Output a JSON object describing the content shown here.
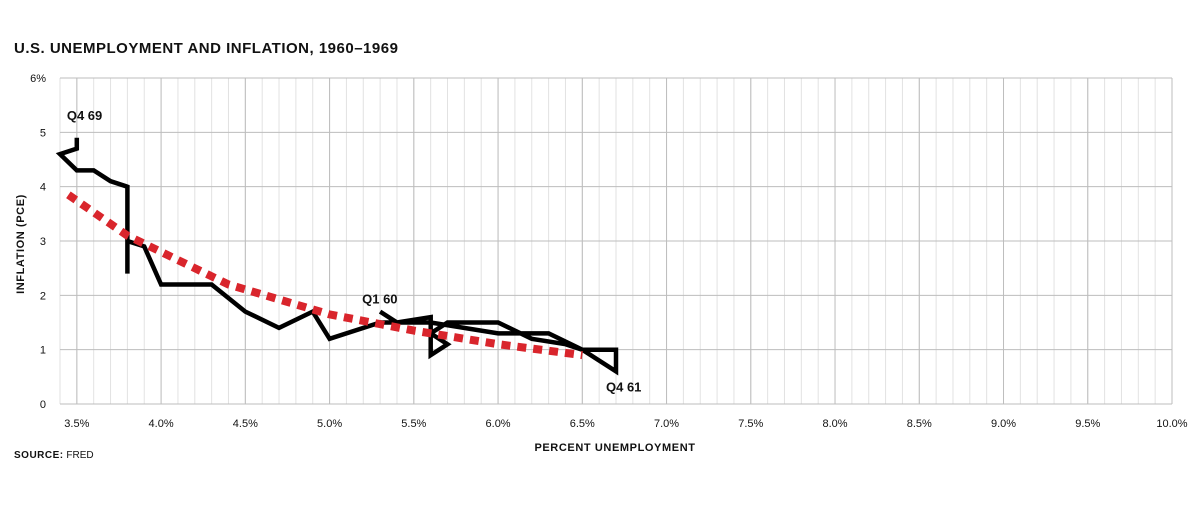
{
  "title": "U.S. UNEMPLOYMENT AND INFLATION, 1960–1969",
  "source_label": "SOURCE:",
  "source_value": "FRED",
  "chart_data": {
    "type": "line",
    "title": "U.S. UNEMPLOYMENT AND INFLATION, 1960–1969",
    "xlabel": "PERCENT UNEMPLOYMENT",
    "ylabel": "INFLATION (PCE)",
    "xlim": [
      3.4,
      10.0
    ],
    "ylim": [
      0,
      6
    ],
    "x_ticks": [
      "3.5%",
      "4.0%",
      "4.5%",
      "5.0%",
      "5.5%",
      "6.0%",
      "6.5%",
      "7.0%",
      "7.5%",
      "8.0%",
      "8.5%",
      "9.0%",
      "9.5%",
      "10.0%"
    ],
    "x_tick_values": [
      3.5,
      4.0,
      4.5,
      5.0,
      5.5,
      6.0,
      6.5,
      7.0,
      7.5,
      8.0,
      8.5,
      9.0,
      9.5,
      10.0
    ],
    "y_ticks": [
      "0",
      "1",
      "2",
      "3",
      "4",
      "5",
      "6%"
    ],
    "y_tick_values": [
      0,
      1,
      2,
      3,
      4,
      5,
      6
    ],
    "grid": true,
    "series": [
      {
        "color": "#000000",
        "style": "solid",
        "x": [
          5.3,
          5.4,
          5.6,
          5.6,
          5.7,
          5.6,
          5.7,
          6.0,
          6.2,
          6.4,
          6.5,
          6.7,
          6.7,
          6.5,
          6.3,
          6.0,
          5.6,
          5.3,
          5.0,
          4.9,
          4.7,
          4.5,
          4.3,
          4.0,
          3.9,
          3.8,
          3.8,
          3.8,
          3.7,
          3.6,
          3.5,
          3.4,
          3.5,
          3.5
        ],
        "y": [
          1.7,
          1.5,
          1.6,
          0.9,
          1.1,
          1.3,
          1.5,
          1.5,
          1.2,
          1.1,
          1.0,
          1.0,
          0.6,
          1.0,
          1.3,
          1.3,
          1.5,
          1.5,
          1.2,
          1.7,
          1.4,
          1.7,
          2.2,
          2.2,
          2.9,
          3.0,
          2.4,
          4.0,
          4.1,
          4.3,
          4.3,
          4.6,
          4.7,
          4.9
        ]
      },
      {
        "color": "#d9252c",
        "style": "dotted",
        "x": [
          3.45,
          3.8,
          4.4,
          5.0,
          5.5,
          6.0,
          6.5
        ],
        "y": [
          3.85,
          3.1,
          2.2,
          1.65,
          1.35,
          1.1,
          0.9
        ]
      }
    ],
    "annotations": [
      {
        "text": "Q1 60",
        "x": 5.3,
        "y": 1.7
      },
      {
        "text": "Q4 61",
        "x": 6.7,
        "y": 0.6
      },
      {
        "text": "Q4 69",
        "x": 3.5,
        "y": 4.9
      }
    ]
  }
}
